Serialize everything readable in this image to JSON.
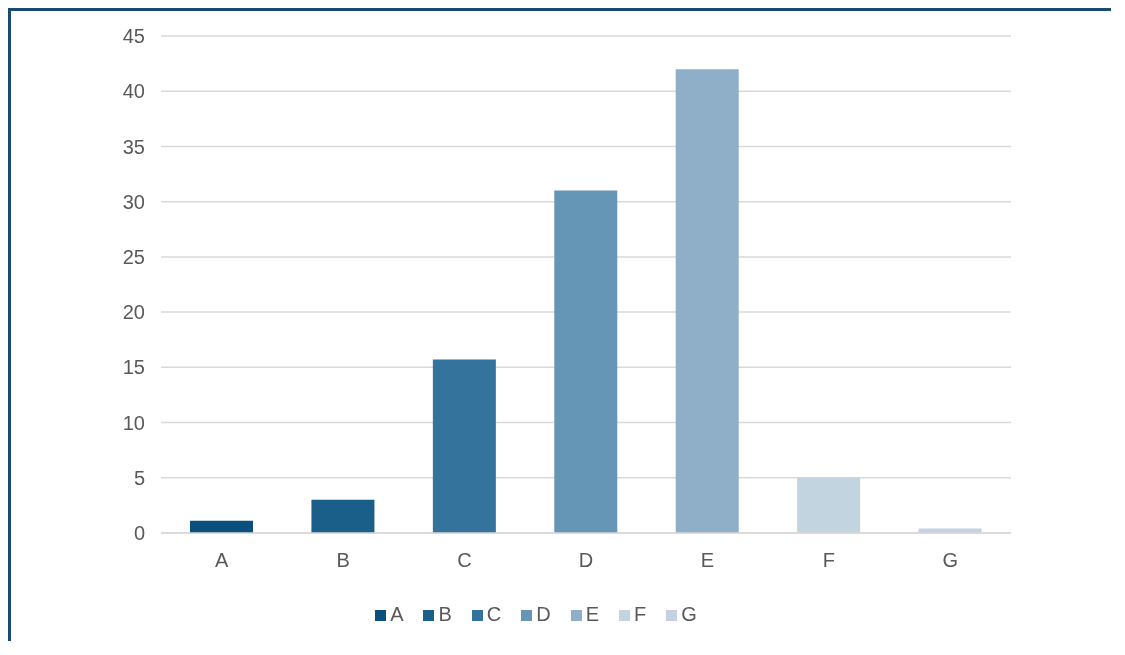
{
  "chart_data": {
    "type": "bar",
    "categories": [
      "A",
      "B",
      "C",
      "D",
      "E",
      "F",
      "G"
    ],
    "stacked": true,
    "series": [
      {
        "name": "A",
        "color": "#0b4f7f",
        "values": [
          1.1,
          null,
          null,
          null,
          null,
          null,
          null
        ]
      },
      {
        "name": "B",
        "color": "#1a5e8a",
        "values": [
          null,
          3,
          null,
          null,
          null,
          null,
          null
        ]
      },
      {
        "name": "C",
        "color": "#34739b",
        "values": [
          null,
          null,
          15.7,
          null,
          null,
          null,
          null
        ]
      },
      {
        "name": "D",
        "color": "#6696b5",
        "values": [
          null,
          null,
          null,
          31,
          null,
          null,
          null
        ]
      },
      {
        "name": "E",
        "color": "#8eafc7",
        "values": [
          null,
          null,
          null,
          null,
          42,
          null,
          null
        ]
      },
      {
        "name": "F",
        "color": "#c2d4e0",
        "values": [
          null,
          null,
          null,
          null,
          null,
          5,
          null
        ]
      },
      {
        "name": "G",
        "color": "#c5d0e3",
        "values": [
          null,
          null,
          null,
          null,
          null,
          null,
          0.4
        ]
      }
    ],
    "ylim": [
      0,
      45
    ],
    "yticks": [
      0,
      5,
      10,
      15,
      20,
      25,
      30,
      35,
      40,
      45
    ],
    "grid": "y",
    "legend": "bottom"
  }
}
